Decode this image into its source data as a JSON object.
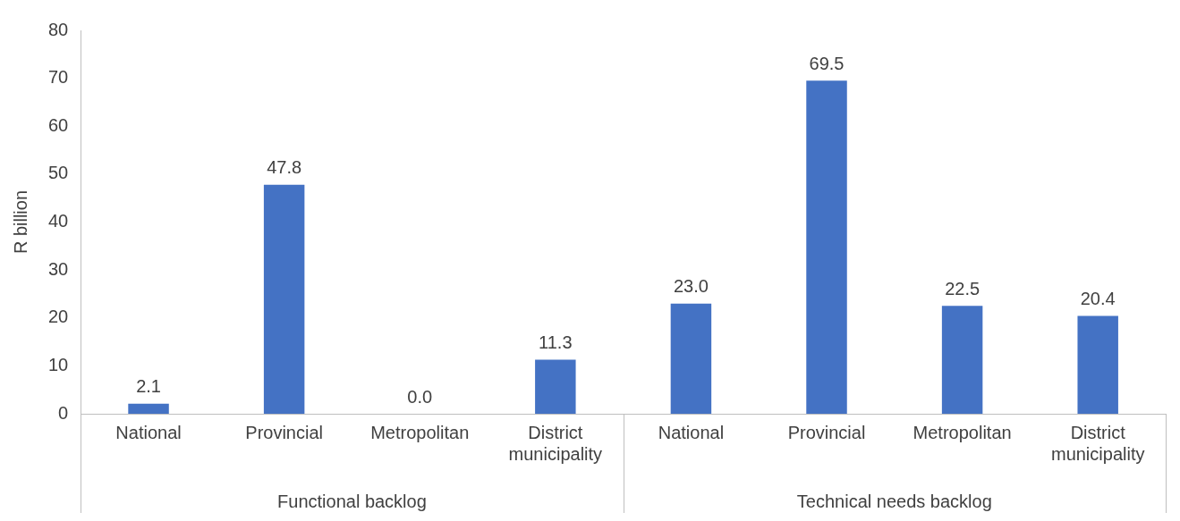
{
  "chart_data": {
    "type": "bar",
    "ylabel": "R billion",
    "categories": [
      "National",
      "Provincial",
      "Metropolitan",
      "District municipality",
      "National",
      "Provincial",
      "Metropolitan",
      "District municipality"
    ],
    "values": [
      2.1,
      47.8,
      0.0,
      11.3,
      23.0,
      69.5,
      22.5,
      20.4
    ],
    "value_labels": [
      "2.1",
      "47.8",
      "0.0",
      "11.3",
      "23.0",
      "69.5",
      "22.5",
      "20.4"
    ],
    "color": "#4472c4",
    "ylim": [
      0,
      80
    ],
    "yticks": [
      0,
      10,
      20,
      30,
      40,
      50,
      60,
      70,
      80
    ],
    "grid": false,
    "legend": false,
    "annotations": [
      "Functional backlog",
      "Technical needs backlog"
    ]
  }
}
